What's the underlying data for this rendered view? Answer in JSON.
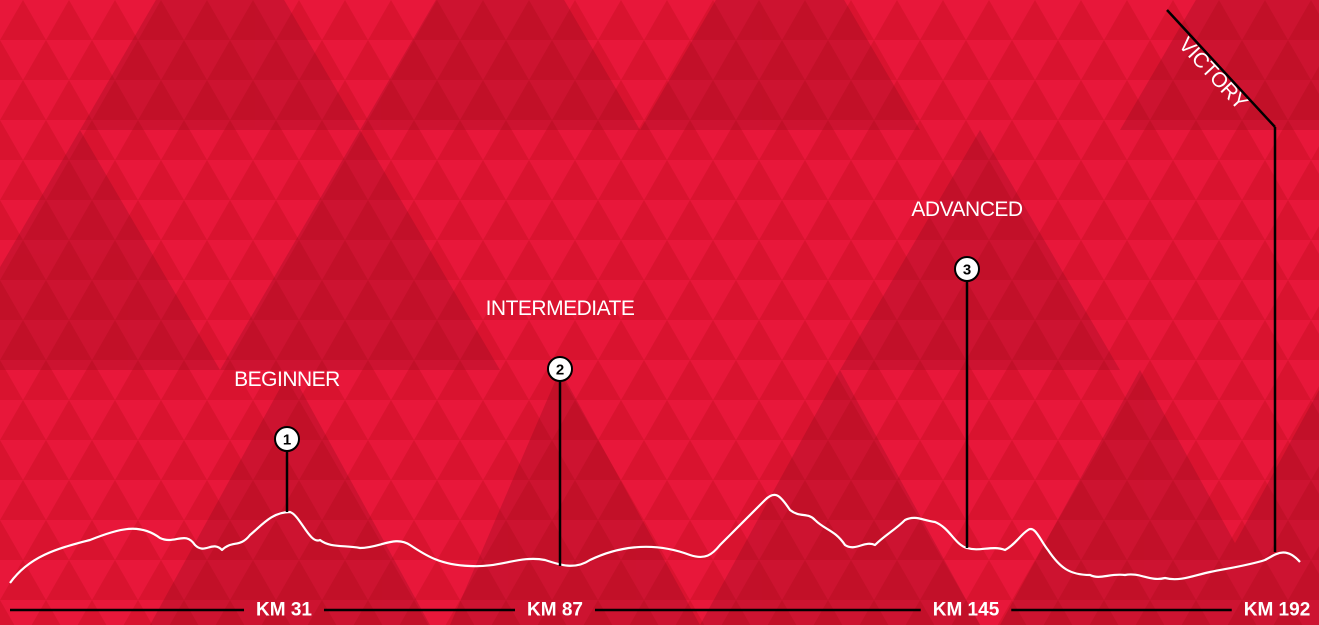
{
  "stages": [
    {
      "number": 1,
      "label": "BEGINNER",
      "distance": "KM 31"
    },
    {
      "number": 2,
      "label": "INTERMEDIATE",
      "distance": "KM 87"
    },
    {
      "number": 3,
      "label": "ADVANCED",
      "distance": "KM 145"
    }
  ],
  "finish": {
    "label": "VICTORY",
    "distance": "KM 192"
  }
}
